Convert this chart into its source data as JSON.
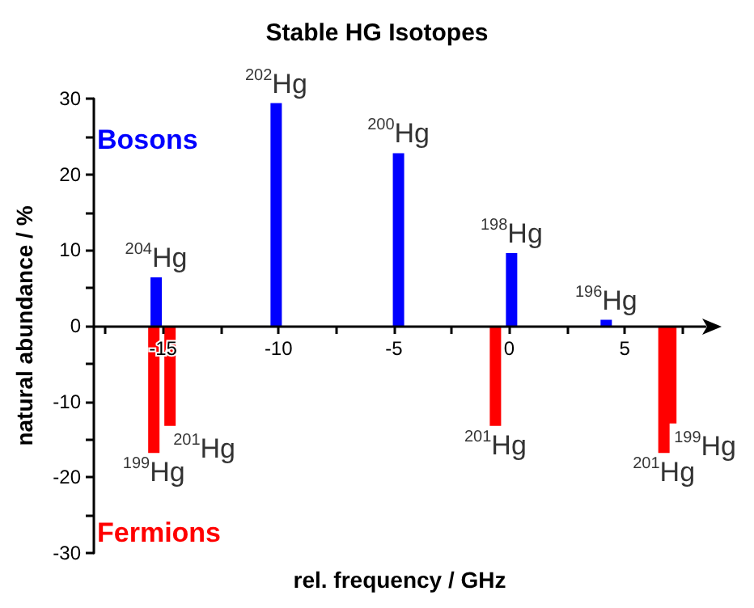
{
  "chart_data": {
    "type": "bar",
    "title": "Stable HG Isotopes",
    "xlabel": "rel. frequency / GHz",
    "ylabel": "natural abundance / %",
    "series": [
      {
        "name": "Bosons",
        "color": "#0000ff",
        "x": [
          -15.3,
          -10.1,
          -4.8,
          0.1,
          4.2
        ],
        "values": [
          6.4,
          29.4,
          22.8,
          9.6,
          0.8
        ]
      },
      {
        "name": "Fermions",
        "color": "#ff0000",
        "x": [
          -15.4,
          -14.7,
          -0.6,
          6.7,
          7.0
        ],
        "values": [
          -16.8,
          -13.2,
          -13.2,
          -16.8,
          -12.9
        ]
      }
    ],
    "annotations": [
      {
        "text": "$^{204}$Hg",
        "x": -15.3,
        "y": 6.4
      },
      {
        "text": "$^{202}$Hg",
        "x": -10.1,
        "y": 29.4
      },
      {
        "text": "$^{200}$Hg",
        "x": -4.8,
        "y": 22.8
      },
      {
        "text": "$^{198}$Hg",
        "x": 0.1,
        "y": 9.6
      },
      {
        "text": "$^{196}$Hg",
        "x": 4.2,
        "y": 0.8
      },
      {
        "text": "$^{199}$Hg",
        "x": -15.4,
        "y": -16.8
      },
      {
        "text": "$^{201}$Hg",
        "x": -14.7,
        "y": -13.2
      },
      {
        "text": "$^{201}$Hg",
        "x": -0.6,
        "y": -13.2
      },
      {
        "text": "$^{201}$Hg",
        "x": 6.7,
        "y": -16.8
      },
      {
        "text": "$^{199}$Hg",
        "x": 7.0,
        "y": -12.9
      }
    ],
    "xlim": [
      -18,
      8.5
    ],
    "xticks": [
      {
        "value": -17.5,
        "label": null
      },
      -15,
      {
        "value": -12.5,
        "label": null
      },
      -10,
      {
        "value": -7.5,
        "label": null
      },
      -5,
      {
        "value": -2.5,
        "label": null
      },
      0,
      {
        "value": 2.5,
        "label": null
      },
      5,
      {
        "value": 7.5,
        "label": null
      }
    ],
    "ylim": [
      -30,
      30
    ],
    "yticks": [
      -30,
      {
        "value": -25,
        "label": null
      },
      -20,
      {
        "value": -15,
        "label": null
      },
      -10,
      {
        "value": -5,
        "label": null
      },
      0,
      {
        "value": 5,
        "label": null
      },
      10,
      {
        "value": 15,
        "label": null
      },
      20,
      {
        "value": 25,
        "label": null
      },
      30
    ],
    "grid": false,
    "legend": false
  }
}
